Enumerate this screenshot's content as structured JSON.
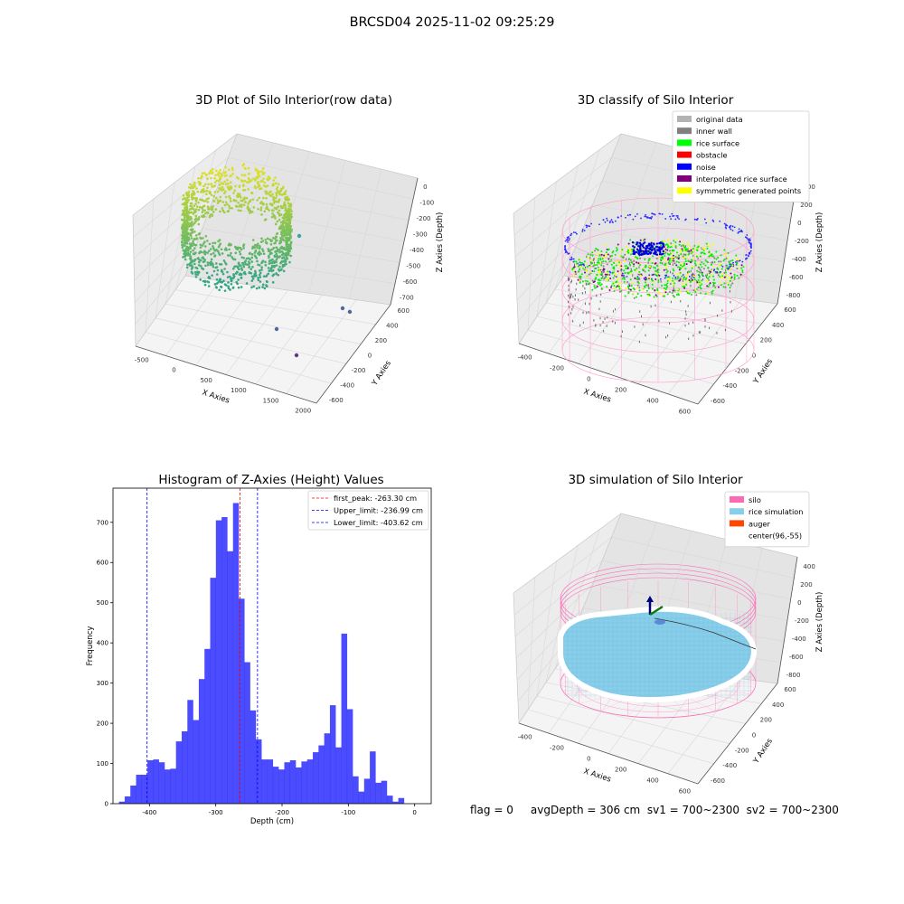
{
  "suptitle": "BRCSD04 2025-11-02 09:25:29",
  "status_text": "flag = 0     avgDepth = 306 cm  sv1 = 700~2300  sv2 = 700~2300",
  "panels": {
    "raw": {
      "title": "3D Plot of Silo Interior(row data)",
      "xlabel": "X Axies",
      "ylabel": "Y Axies",
      "zlabel": "Z Axies (Depth)",
      "xticks": [
        "-500",
        "0",
        "500",
        "1000",
        "1500",
        "2000"
      ],
      "yticks": [
        "600",
        "400",
        "200",
        "0",
        "-200",
        "-400",
        "-600"
      ],
      "zticks": [
        "0",
        "-100",
        "-200",
        "-300",
        "-400",
        "-500",
        "-600",
        "-700"
      ]
    },
    "classify": {
      "title": "3D classify of Silo Interior",
      "xlabel": "X Axies",
      "ylabel": "Y Axies",
      "zlabel": "Z Axies (Depth)",
      "xticks": [
        "-400",
        "-200",
        "0",
        "200",
        "400",
        "600"
      ],
      "yticks": [
        "600",
        "400",
        "200",
        "0",
        "-200",
        "-400",
        "-600"
      ],
      "zticks": [
        "400",
        "200",
        "0",
        "-200",
        "-400",
        "-600",
        "-800"
      ],
      "legend": [
        {
          "label": "original data",
          "color": "#b3b3b3"
        },
        {
          "label": "inner wall",
          "color": "#808080"
        },
        {
          "label": "rice surface",
          "color": "#00ff00"
        },
        {
          "label": "obstacle",
          "color": "#ff0000"
        },
        {
          "label": "noise",
          "color": "#0000ff"
        },
        {
          "label": "interpolated rice surface",
          "color": "#800080"
        },
        {
          "label": "symmetric generated points",
          "color": "#ffff00"
        }
      ]
    },
    "simulation": {
      "title": "3D simulation of Silo Interior",
      "xlabel": "X Axies",
      "ylabel": "Y Axies",
      "zlabel": "Z Axies (Depth)",
      "xticks": [
        "-400",
        "-200",
        "0",
        "200",
        "400",
        "600"
      ],
      "yticks": [
        "600",
        "400",
        "200",
        "0",
        "-200",
        "-400",
        "-600"
      ],
      "zticks": [
        "400",
        "200",
        "0",
        "-200",
        "-400",
        "-600",
        "-800"
      ],
      "legend": [
        {
          "label": "silo",
          "color": "#ff69b4"
        },
        {
          "label": "rice simulation",
          "color": "#87ceeb"
        },
        {
          "label": "auger",
          "color": "#ff4500"
        },
        {
          "label": "center(96,-55)",
          "color": ""
        }
      ]
    }
  },
  "chart_data": [
    {
      "type": "bar",
      "title": "Histogram of Z-Axies (Height) Values",
      "xlabel": "Depth (cm)",
      "ylabel": "Frequency",
      "xlim": [
        -455,
        25
      ],
      "ylim": [
        0,
        785
      ],
      "xticks": [
        -400,
        -300,
        -200,
        -100,
        0
      ],
      "yticks": [
        0,
        100,
        200,
        300,
        400,
        500,
        600,
        700
      ],
      "bar_color": "#0000ff",
      "bin_start": -446,
      "bin_width": 8.6,
      "values": [
        5,
        18,
        45,
        72,
        72,
        108,
        110,
        103,
        85,
        87,
        155,
        180,
        258,
        208,
        310,
        385,
        562,
        705,
        713,
        628,
        748,
        510,
        352,
        232,
        160,
        110,
        110,
        92,
        85,
        103,
        108,
        90,
        105,
        110,
        128,
        145,
        175,
        245,
        140,
        423,
        235,
        68,
        30,
        62,
        130,
        52,
        57,
        20,
        5,
        14
      ],
      "vlines": [
        {
          "label": "first_peak: -263.30 cm",
          "x": -263.3,
          "color": "#ff0000"
        },
        {
          "label": "Upper_limit: -236.99 cm",
          "x": -236.99,
          "color": "#0000ff"
        },
        {
          "label": "Lower_limit: -403.62 cm",
          "x": -403.62,
          "color": "#0000ff"
        }
      ],
      "legend_position": "top-right"
    }
  ]
}
